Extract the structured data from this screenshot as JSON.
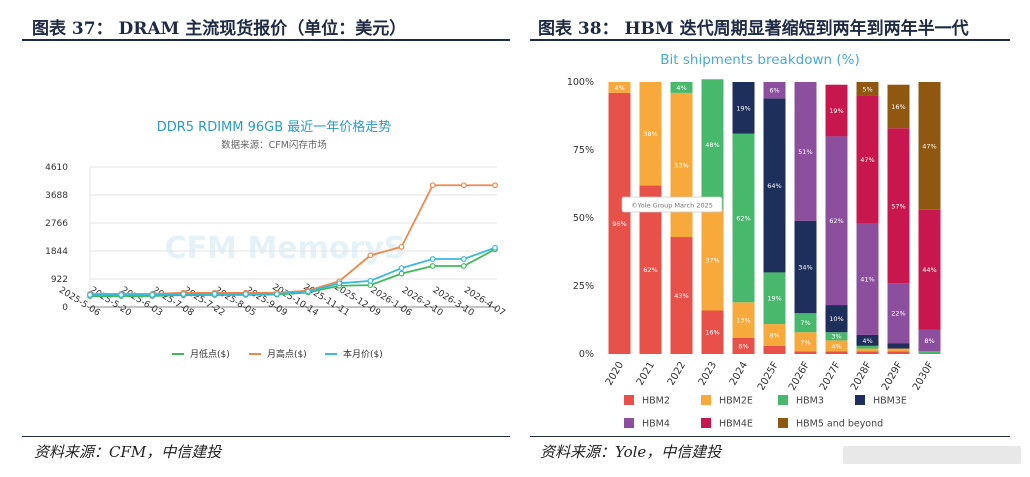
{
  "left_panel": {
    "header": "图表 37： DRAM 主流现货报价（单位：美元）",
    "source": "资料来源：CFM，中信建投"
  },
  "right_panel": {
    "header": "图表 38： HBM 迭代周期显著缩短到两年到两年半一代",
    "source": "资料来源：Yole，中信建投"
  },
  "chart_data": [
    {
      "type": "line",
      "title": "DDR5 RDIMM 96GB 最近一年价格走势",
      "subtitle": "数据来源：CFM闪存市场",
      "watermark": "CFM MemoryS",
      "x": [
        "2025-5-06",
        "2025-5-20",
        "2025-6-03",
        "2025-7-08",
        "2025-7-22",
        "2025-8-05",
        "2025-9-09",
        "2025-10-14",
        "2025-11-11",
        "2025-12-09",
        "2026-1-06",
        "2026-2-10",
        "2026-3-10",
        "2026-4-07"
      ],
      "yticks": [
        0,
        922,
        1844,
        2766,
        3688,
        4610
      ],
      "ylim": [
        0,
        4610
      ],
      "grid": "horizontal",
      "legend_position": "bottom",
      "series": [
        {
          "name": "月低点($)",
          "color": "#3dbb5a",
          "values": [
            360,
            360,
            365,
            390,
            395,
            400,
            410,
            480,
            700,
            720,
            1100,
            1350,
            1350,
            1900
          ]
        },
        {
          "name": "月高点($)",
          "color": "#f0884a",
          "values": [
            430,
            430,
            430,
            470,
            470,
            470,
            470,
            540,
            850,
            1700,
            1980,
            4010,
            4010,
            4010
          ]
        },
        {
          "name": "本月价($)",
          "color": "#3bb8e0",
          "values": [
            400,
            400,
            400,
            430,
            430,
            430,
            430,
            510,
            780,
            860,
            1280,
            1580,
            1580,
            1950
          ]
        }
      ]
    },
    {
      "type": "bar",
      "stacked": true,
      "title": "Bit shipments breakdown (%)",
      "watermark": "©Yole Group March 2025",
      "categories": [
        "2020",
        "2021",
        "2022",
        "2023",
        "2024",
        "2025F",
        "2026F",
        "2027F",
        "2028F",
        "2029F",
        "2030F"
      ],
      "yticks": [
        "0%",
        "25%",
        "50%",
        "75%",
        "100%"
      ],
      "ylim": [
        0,
        100
      ],
      "legend_position": "bottom",
      "series": [
        {
          "name": "HBM2",
          "color": "#e8514a",
          "values": [
            96,
            62,
            43,
            16,
            6,
            3,
            1,
            1,
            1,
            1,
            0
          ],
          "labels": [
            "96%",
            "62%",
            "43%",
            "16%",
            "6%",
            "",
            "",
            "",
            "",
            "",
            ""
          ]
        },
        {
          "name": "HBM2E",
          "color": "#f7a93b",
          "values": [
            4,
            38,
            53,
            37,
            13,
            8,
            7,
            4,
            1,
            1,
            0
          ],
          "labels": [
            "4%",
            "38%",
            "53%",
            "37%",
            "13%",
            "8%",
            "7%",
            "4%",
            "",
            "",
            ""
          ]
        },
        {
          "name": "HBM3",
          "color": "#47b86c",
          "values": [
            0,
            0,
            4,
            48,
            62,
            19,
            7,
            3,
            1,
            0,
            1
          ],
          "labels": [
            "",
            "",
            "4%",
            "48%",
            "62%",
            "19%",
            "7%",
            "3%",
            "",
            "",
            ""
          ]
        },
        {
          "name": "HBM3E",
          "color": "#1f2f5c",
          "values": [
            0,
            0,
            0,
            0,
            19,
            64,
            34,
            10,
            4,
            2,
            0
          ],
          "labels": [
            "",
            "",
            "",
            "",
            "19%",
            "64%",
            "34%",
            "10%",
            "4%",
            "",
            ""
          ]
        },
        {
          "name": "HBM4",
          "color": "#8c4f9e",
          "values": [
            0,
            0,
            0,
            0,
            0,
            6,
            51,
            62,
            41,
            22,
            8
          ],
          "labels": [
            "",
            "",
            "",
            "",
            "",
            "6%",
            "51%",
            "62%",
            "41%",
            "22%",
            "8%"
          ]
        },
        {
          "name": "HBM4E",
          "color": "#c8174e",
          "values": [
            0,
            0,
            0,
            0,
            0,
            0,
            0,
            19,
            47,
            57,
            44
          ],
          "labels": [
            "",
            "",
            "",
            "",
            "",
            "",
            "",
            "19%",
            "47%",
            "57%",
            "44%"
          ]
        },
        {
          "name": "HBM5 and beyond",
          "color": "#8f5710",
          "values": [
            0,
            0,
            0,
            0,
            0,
            0,
            0,
            0,
            5,
            16,
            47
          ],
          "labels": [
            "",
            "",
            "",
            "",
            "",
            "",
            "",
            "",
            "5%",
            "16%",
            "47%"
          ]
        }
      ]
    }
  ]
}
